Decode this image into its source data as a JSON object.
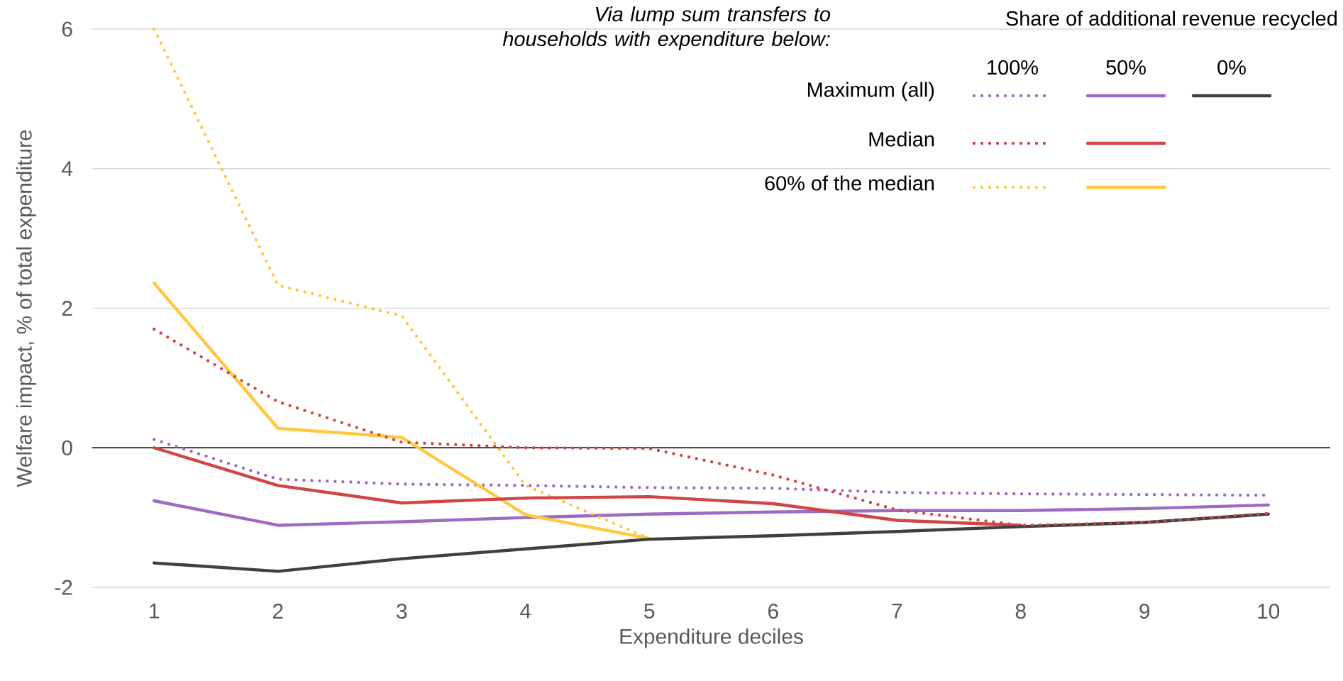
{
  "chart_data": {
    "type": "line",
    "xlabel": "Expenditure deciles",
    "ylabel": "Welfare impact, % of total expenditure",
    "legend_title": "Share of additional revenue recycled",
    "annotations": [
      "Via lump sum transfers to households with expenditure below:",
      "100%",
      "50%",
      "0%",
      "Maximum (all)",
      "Median",
      "60% of the median"
    ],
    "categories": [
      "1",
      "2",
      "3",
      "4",
      "5",
      "6",
      "7",
      "8",
      "9",
      "10"
    ],
    "ylim": [
      -2,
      6
    ],
    "yticks": [
      -2,
      0,
      2,
      4,
      6
    ],
    "grid": "y",
    "ref_lines": [
      {
        "axis": "y",
        "value": 0,
        "color": "#000000"
      }
    ],
    "series": [
      {
        "color": "#9e6ac4",
        "line_style": "dotted",
        "values": [
          0.12,
          -0.45,
          -0.52,
          -0.54,
          -0.57,
          -0.58,
          -0.64,
          -0.66,
          -0.67,
          -0.68
        ]
      },
      {
        "color": "#9e6ac4",
        "line_style": "solid",
        "values": [
          -0.76,
          -1.11,
          -1.06,
          -1.0,
          -0.95,
          -0.92,
          -0.9,
          -0.9,
          -0.87,
          -0.82
        ]
      },
      {
        "color": "#ffc83d",
        "line_style": "dotted",
        "values": [
          6.0,
          2.33,
          1.89,
          -0.54,
          -1.3,
          null,
          null,
          null,
          null,
          null
        ]
      },
      {
        "color": "#ffc83d",
        "line_style": "solid",
        "values": [
          2.36,
          0.28,
          0.15,
          -0.96,
          -1.3,
          null,
          null,
          null,
          null,
          null
        ]
      },
      {
        "color": "#d24545",
        "line_style": "solid",
        "values": [
          0.0,
          -0.54,
          -0.79,
          -0.72,
          -0.7,
          -0.8,
          -1.04,
          -1.11,
          null,
          null
        ]
      },
      {
        "color": "#404040",
        "line_style": "solid",
        "values": [
          -1.65,
          -1.77,
          -1.59,
          -1.45,
          -1.31,
          -1.26,
          -1.2,
          -1.13,
          -1.07,
          -0.95
        ]
      },
      {
        "color": "#d24545",
        "line_style": "dotted",
        "values": [
          1.7,
          0.66,
          0.08,
          0.0,
          -0.01,
          -0.39,
          -0.89,
          -1.11,
          -1.07,
          -0.94
        ]
      }
    ]
  }
}
